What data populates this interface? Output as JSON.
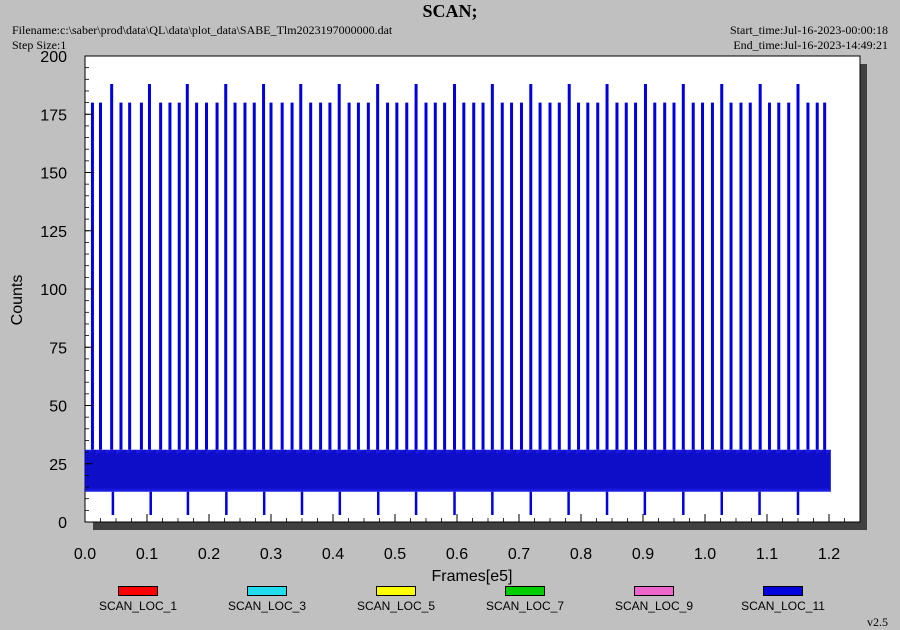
{
  "header": {
    "title": "SCAN;",
    "filename": "Filename:c:\\saber\\prod\\data\\QL\\data\\plot_data\\SABE_Tlm2023197000000.dat",
    "step_size": "Step Size:1",
    "start_time": "Start_time:Jul-16-2023-00:00:18",
    "end_time": "End_time:Jul-16-2023-14:49:21"
  },
  "version": "v2.5",
  "legend": [
    {
      "label": "SCAN_LOC_1",
      "color": "#ff0000"
    },
    {
      "label": "SCAN_LOC_3",
      "color": "#22ddee"
    },
    {
      "label": "SCAN_LOC_5",
      "color": "#ffff00"
    },
    {
      "label": "SCAN_LOC_7",
      "color": "#00cc00"
    },
    {
      "label": "SCAN_LOC_9",
      "color": "#ee66cc"
    },
    {
      "label": "SCAN_LOC_11",
      "color": "#0000dd"
    }
  ],
  "chart_data": {
    "type": "line",
    "xlabel": "Frames[e5]",
    "ylabel": "Counts",
    "xlim": [
      0,
      1.25
    ],
    "ylim": [
      0,
      200
    ],
    "xticks": [
      "0.0",
      "0.1",
      "0.2",
      "0.3",
      "0.4",
      "0.5",
      "0.6",
      "0.7",
      "0.8",
      "0.9",
      "1.0",
      "1.1",
      "1.2"
    ],
    "yticks": [
      "0",
      "25",
      "50",
      "75",
      "100",
      "125",
      "150",
      "175",
      "200"
    ],
    "grid": false,
    "series": [
      {
        "name": "SCAN_LOC_11",
        "color": "#0000dd",
        "baseline_band": [
          13,
          31
        ],
        "x_end": 1.203,
        "spike_x": [
          0.012,
          0.025,
          0.043,
          0.058,
          0.072,
          0.091,
          0.104,
          0.122,
          0.137,
          0.152,
          0.165,
          0.18,
          0.196,
          0.213,
          0.227,
          0.242,
          0.258,
          0.273,
          0.288,
          0.3,
          0.318,
          0.334,
          0.348,
          0.364,
          0.38,
          0.395,
          0.41,
          0.426,
          0.441,
          0.457,
          0.472,
          0.488,
          0.503,
          0.519,
          0.534,
          0.55,
          0.565,
          0.58,
          0.596,
          0.611,
          0.627,
          0.642,
          0.657,
          0.673,
          0.688,
          0.704,
          0.719,
          0.734,
          0.75,
          0.765,
          0.781,
          0.796,
          0.811,
          0.827,
          0.842,
          0.858,
          0.873,
          0.888,
          0.904,
          0.919,
          0.935,
          0.95,
          0.965,
          0.981,
          0.996,
          1.012,
          1.027,
          1.042,
          1.058,
          1.073,
          1.089,
          1.104,
          1.119,
          1.135,
          1.15,
          1.166,
          1.181,
          1.193
        ],
        "spike_y": [
          180,
          180,
          188,
          180,
          180,
          180,
          188,
          180,
          180,
          180,
          188,
          180,
          180,
          180,
          188,
          180,
          180,
          180,
          188,
          180,
          180,
          180,
          188,
          180,
          180,
          180,
          188,
          180,
          180,
          180,
          188,
          180,
          180,
          180,
          188,
          180,
          180,
          180,
          188,
          180,
          180,
          180,
          188,
          180,
          180,
          180,
          188,
          180,
          180,
          180,
          188,
          180,
          180,
          180,
          188,
          180,
          180,
          180,
          188,
          180,
          180,
          180,
          188,
          180,
          180,
          180,
          188,
          180,
          180,
          180,
          188,
          180,
          180,
          180,
          188,
          180,
          180,
          180
        ],
        "dip_x": [
          0.045,
          0.106,
          0.166,
          0.228,
          0.289,
          0.35,
          0.411,
          0.473,
          0.534,
          0.596,
          0.657,
          0.719,
          0.78,
          0.842,
          0.903,
          0.965,
          1.027,
          1.088,
          1.15
        ],
        "dip_y": 3
      }
    ]
  }
}
